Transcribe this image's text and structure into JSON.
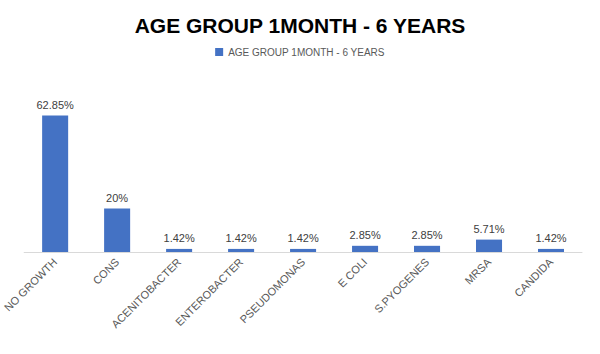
{
  "chart_data": {
    "type": "bar",
    "title": "AGE GROUP 1MONTH - 6 YEARS",
    "categories": [
      "NO GROWTH",
      "CONS",
      "ACENITOBACTER",
      "ENTEROBACTER",
      "PSEUDOMONAS",
      "E COLI",
      "S.PYOGENES",
      "MRSA",
      "CANDIDA"
    ],
    "series": [
      {
        "name": "AGE GROUP 1MONTH - 6 YEARS",
        "color": "#4472c4",
        "values": [
          62.85,
          20,
          1.42,
          1.42,
          1.42,
          2.85,
          2.85,
          5.71,
          1.42
        ],
        "value_labels": [
          "62.85%",
          "20%",
          "1.42%",
          "1.42%",
          "1.42%",
          "2.85%",
          "2.85%",
          "5.71%",
          "1.42%"
        ]
      }
    ],
    "legend": "top",
    "data_labels": true,
    "tick_labels": "x",
    "grid": false
  }
}
